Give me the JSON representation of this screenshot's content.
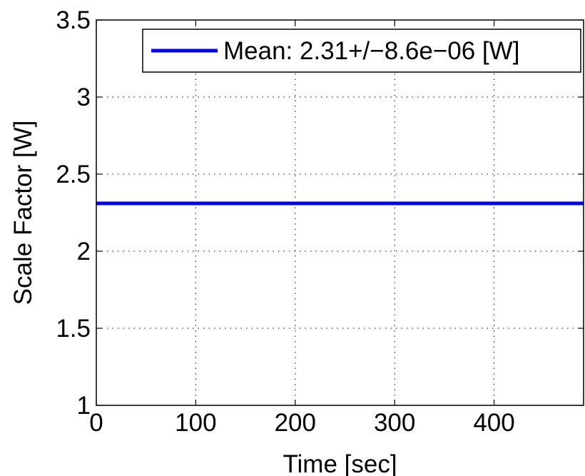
{
  "chart_data": {
    "type": "line",
    "xlabel": "Time [sec]",
    "ylabel": "Scale Factor [W]",
    "xlim": [
      0,
      490
    ],
    "ylim": [
      1,
      3.5
    ],
    "xticks": [
      0,
      100,
      200,
      300,
      400
    ],
    "yticks": [
      1,
      1.5,
      2,
      2.5,
      3,
      3.5
    ],
    "xtick_labels": [
      "0",
      "100",
      "200",
      "300",
      "400"
    ],
    "ytick_labels": [
      "1",
      "1.5",
      "2",
      "2.5",
      "3",
      "3.5"
    ],
    "grid": true,
    "legend_position": "top-right",
    "series": [
      {
        "name": "Mean: 2.31+/−8.6e−06 [W]",
        "color": "#0000ff",
        "x": [
          0,
          490
        ],
        "y": [
          2.31,
          2.31
        ]
      }
    ]
  }
}
